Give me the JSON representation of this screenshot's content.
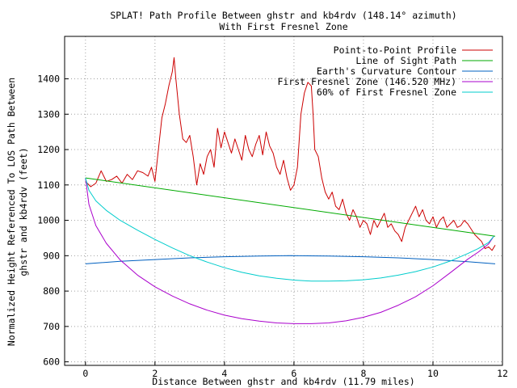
{
  "chart_data": {
    "type": "line",
    "title": "SPLAT! Path Profile Between ghstr and kb4rdv (148.14° azimuth)",
    "subtitle": "With First Fresnel Zone",
    "xlabel": "Distance Between ghstr and kb4rdv (11.79 miles)",
    "ylabel": [
      "Normalized Height Referenced To LOS Path Between",
      "ghstr and kb4rdv (feet)"
    ],
    "xlim": [
      -0.6,
      12
    ],
    "ylim": [
      590,
      1520
    ],
    "grid": true,
    "legend_position": "top-right",
    "x_ticks": [
      0,
      2,
      4,
      6,
      8,
      10,
      12
    ],
    "y_ticks": [
      600,
      700,
      800,
      900,
      1000,
      1100,
      1200,
      1300,
      1400
    ],
    "series": [
      {
        "name": "Point-to-Point Profile",
        "color": "#cc0000",
        "x": [
          0,
          0.15,
          0.3,
          0.45,
          0.6,
          0.75,
          0.9,
          1.05,
          1.2,
          1.35,
          1.5,
          1.65,
          1.8,
          1.9,
          2.0,
          2.1,
          2.2,
          2.3,
          2.4,
          2.5,
          2.55,
          2.6,
          2.7,
          2.8,
          2.9,
          3.0,
          3.1,
          3.2,
          3.3,
          3.4,
          3.5,
          3.6,
          3.7,
          3.8,
          3.9,
          4.0,
          4.1,
          4.2,
          4.3,
          4.4,
          4.5,
          4.6,
          4.7,
          4.8,
          4.9,
          5.0,
          5.1,
          5.2,
          5.3,
          5.4,
          5.5,
          5.6,
          5.7,
          5.8,
          5.9,
          6.0,
          6.1,
          6.2,
          6.3,
          6.4,
          6.5,
          6.55,
          6.6,
          6.7,
          6.8,
          6.9,
          7.0,
          7.1,
          7.2,
          7.3,
          7.4,
          7.5,
          7.6,
          7.7,
          7.8,
          7.9,
          8.0,
          8.1,
          8.2,
          8.3,
          8.4,
          8.5,
          8.6,
          8.7,
          8.8,
          8.9,
          9.0,
          9.1,
          9.2,
          9.3,
          9.4,
          9.5,
          9.6,
          9.7,
          9.8,
          9.9,
          10.0,
          10.1,
          10.2,
          10.3,
          10.4,
          10.5,
          10.6,
          10.7,
          10.8,
          10.9,
          11.0,
          11.1,
          11.2,
          11.3,
          11.4,
          11.5,
          11.6,
          11.7,
          11.79
        ],
        "y": [
          1110,
          1095,
          1105,
          1140,
          1110,
          1115,
          1125,
          1105,
          1130,
          1115,
          1140,
          1135,
          1125,
          1150,
          1110,
          1200,
          1290,
          1330,
          1380,
          1420,
          1460,
          1400,
          1300,
          1230,
          1220,
          1240,
          1180,
          1100,
          1160,
          1130,
          1180,
          1200,
          1150,
          1260,
          1205,
          1250,
          1220,
          1190,
          1230,
          1200,
          1170,
          1240,
          1200,
          1180,
          1215,
          1240,
          1185,
          1250,
          1210,
          1190,
          1150,
          1130,
          1170,
          1120,
          1085,
          1100,
          1150,
          1300,
          1360,
          1390,
          1380,
          1300,
          1200,
          1180,
          1120,
          1080,
          1060,
          1080,
          1040,
          1030,
          1060,
          1020,
          1000,
          1030,
          1010,
          980,
          1000,
          990,
          960,
          1000,
          980,
          1000,
          1020,
          980,
          990,
          970,
          960,
          940,
          980,
          1000,
          1020,
          1040,
          1010,
          1030,
          1000,
          990,
          1010,
          980,
          1000,
          1010,
          980,
          990,
          1000,
          980,
          985,
          1000,
          990,
          975,
          960,
          950,
          940,
          920,
          925,
          915,
          930
        ]
      },
      {
        "name": "Line of Sight Path",
        "color": "#00aa00",
        "x": [
          0,
          11.79
        ],
        "y": [
          1120,
          955
        ]
      },
      {
        "name": "Earth's Curvature Contour",
        "color": "#0060c0",
        "x": [
          0,
          1.0,
          2.0,
          3.0,
          4.0,
          5.0,
          5.9,
          7.0,
          8.0,
          9.0,
          10.0,
          11.0,
          11.79
        ],
        "y": [
          877,
          884,
          889,
          894,
          897,
          899,
          900,
          899,
          897,
          894,
          889,
          883,
          877
        ]
      },
      {
        "name": "First Fresnel Zone (146.520 MHz)",
        "color": "#aa00cc",
        "x": [
          0,
          0.1,
          0.3,
          0.6,
          1.0,
          1.5,
          2.0,
          2.5,
          3.0,
          3.5,
          4.0,
          4.5,
          5.0,
          5.5,
          6.0,
          6.5,
          7.0,
          7.5,
          8.0,
          8.5,
          9.0,
          9.5,
          10.0,
          10.5,
          11.0,
          11.3,
          11.6,
          11.75
        ],
        "y": [
          1120,
          1045,
          985,
          935,
          888,
          845,
          812,
          786,
          764,
          746,
          732,
          722,
          715,
          710,
          708,
          708,
          710,
          716,
          726,
          740,
          760,
          784,
          815,
          852,
          890,
          910,
          933,
          955
        ]
      },
      {
        "name": "60% of First Fresnel Zone",
        "color": "#00cccc",
        "x": [
          0,
          0.1,
          0.3,
          0.6,
          1.0,
          1.5,
          2.0,
          2.5,
          3.0,
          3.5,
          4.0,
          4.5,
          5.0,
          5.5,
          6.0,
          6.5,
          7.0,
          7.5,
          8.0,
          8.5,
          9.0,
          9.5,
          10.0,
          10.5,
          11.0,
          11.3,
          11.6,
          11.75
        ],
        "y": [
          1120,
          1085,
          1055,
          1028,
          1000,
          972,
          946,
          922,
          900,
          882,
          866,
          853,
          843,
          836,
          831,
          828,
          828,
          829,
          832,
          837,
          845,
          855,
          868,
          885,
          906,
          920,
          937,
          955
        ]
      }
    ]
  }
}
